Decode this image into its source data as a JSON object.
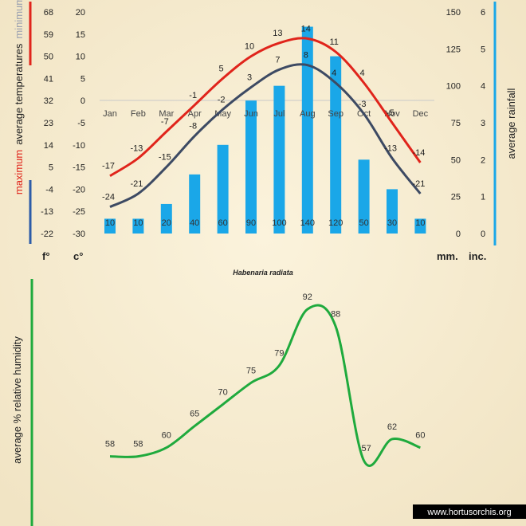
{
  "chart_data": [
    {
      "type": "bar+line",
      "title": "Habenaria radiata",
      "categories": [
        "Jan",
        "Feb",
        "Mar",
        "Apr",
        "May",
        "Jun",
        "Jul",
        "Aug",
        "Sep",
        "Oct",
        "Nov",
        "Dec"
      ],
      "series": [
        {
          "name": "maximum",
          "color": "#e0241b",
          "values": [
            -17,
            -13,
            -7,
            -1,
            5,
            10,
            13,
            14,
            11,
            4,
            -5,
            -14
          ]
        },
        {
          "name": "minimum",
          "color": "#3d4a63",
          "values": [
            -24,
            -21,
            -15,
            -8,
            -2,
            3,
            7,
            8,
            4,
            -3,
            -13,
            -21
          ]
        },
        {
          "name": "average rainfall",
          "color": "#1aa7e8",
          "unit": "mm",
          "values": [
            10,
            10,
            20,
            40,
            60,
            90,
            100,
            140,
            120,
            50,
            30,
            10
          ]
        }
      ],
      "temp_label_max": "maximum",
      "temp_label_mid": "average temperatures",
      "temp_label_min": "minimum",
      "rain_label": "average rainfall",
      "celsius_ticks": [
        "20",
        "15",
        "10",
        "5",
        "0",
        "-5",
        "-10",
        "-15",
        "-20",
        "-25",
        "-30"
      ],
      "fahrenheit_ticks": [
        "68",
        "59",
        "50",
        "41",
        "32",
        "23",
        "14",
        "5",
        "-4",
        "-13",
        "-22"
      ],
      "mm_ticks": [
        "150",
        "125",
        "100",
        "75",
        "50",
        "25",
        "0"
      ],
      "inch_ticks": [
        "6",
        "5",
        "4",
        "3",
        "2",
        "1",
        "0"
      ],
      "unit_f": "f°",
      "unit_c": "c°",
      "unit_mm": "mm.",
      "unit_in": "inc.",
      "ylim_c": [
        -30,
        20
      ],
      "ylim_mm": [
        0,
        150
      ]
    },
    {
      "type": "line",
      "categories": [
        "Jan",
        "Feb",
        "Mar",
        "Apr",
        "May",
        "Jun",
        "Jul",
        "Aug",
        "Sep",
        "Oct",
        "Nov",
        "Dec"
      ],
      "series": [
        {
          "name": "relative humidity",
          "color": "#1faa3d",
          "values": [
            58,
            58,
            60,
            65,
            70,
            75,
            79,
            92,
            88,
            57,
            62,
            60
          ]
        }
      ],
      "ylabel": "average %  relative humidity"
    }
  ],
  "footer": {
    "site": "www.hortusorchis.org"
  }
}
